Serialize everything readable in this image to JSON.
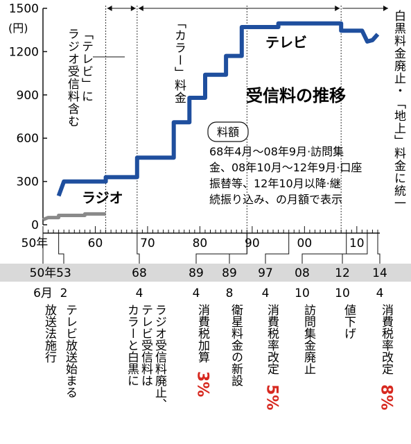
{
  "chart_data": {
    "type": "line",
    "title": "受信料の推移",
    "yunit": "(円)",
    "ylim": [
      0,
      1500
    ],
    "yticks": [
      0,
      300,
      600,
      900,
      1200,
      1500
    ],
    "xlim": [
      1950,
      2014
    ],
    "xticks": [
      {
        "x": 1950,
        "label": "50年"
      },
      {
        "x": 1960,
        "label": "60"
      },
      {
        "x": 1970,
        "label": "70"
      },
      {
        "x": 1980,
        "label": "80"
      },
      {
        "x": 1990,
        "label": "90"
      },
      {
        "x": 2000,
        "label": "00"
      },
      {
        "x": 2010,
        "label": "10"
      }
    ],
    "series": [
      {
        "name": "テレビ",
        "color": "#1f4f9e",
        "points": [
          [
            1953,
            200
          ],
          [
            1954,
            300
          ],
          [
            1962,
            300
          ],
          [
            1962,
            330
          ],
          [
            1968,
            330
          ],
          [
            1968,
            465
          ],
          [
            1975,
            465
          ],
          [
            1975,
            710
          ],
          [
            1978,
            710
          ],
          [
            1978,
            880
          ],
          [
            1981,
            880
          ],
          [
            1981,
            1040
          ],
          [
            1985,
            1040
          ],
          [
            1985,
            1170
          ],
          [
            1988,
            1170
          ],
          [
            1988,
            1370
          ],
          [
            1995,
            1370
          ],
          [
            1995,
            1395
          ],
          [
            2007,
            1395
          ],
          [
            2007,
            1345
          ],
          [
            2011,
            1345
          ],
          [
            2012,
            1270
          ],
          [
            2013,
            1280
          ],
          [
            2014,
            1320
          ]
        ]
      },
      {
        "name": "ラジオ",
        "color": "#8a8a8a",
        "points": [
          [
            1950,
            35
          ],
          [
            1951,
            50
          ],
          [
            1953,
            50
          ],
          [
            1953,
            65
          ],
          [
            1958,
            65
          ],
          [
            1958,
            75
          ],
          [
            1962,
            75
          ]
        ]
      }
    ],
    "periods": [
      {
        "from": 1962,
        "to": 1968,
        "label": "「テレビ」にラジオ受信料含む"
      },
      {
        "from": 1968,
        "to": 1989,
        "label": "「カラー」料金"
      },
      {
        "from": 1989,
        "to": 2014,
        "label": "白黒料金廃止・「地上」料金に統一"
      }
    ],
    "note": {
      "heading": "料額",
      "lines": [
        "68年4月～08年9月·訪問集",
        "金、08年10月～12年9月·口座",
        "振替等、12年10月以降·継",
        "続振り込み、の月額で表示"
      ]
    },
    "events": [
      {
        "x": 1950,
        "year": "50年",
        "month": "6月",
        "text": "放送法施行",
        "extra": ""
      },
      {
        "x": 1953,
        "year": "53",
        "month": "2",
        "text": "テレビ放送始まる",
        "extra": ""
      },
      {
        "x": 1968,
        "year": "68",
        "month": "4",
        "text": "ラジオ受信料廃止、|テレビ受信料は|カラーと白黒に",
        "extra": ""
      },
      {
        "x": 1989,
        "year": "89",
        "month": "4",
        "text": "消費税加算",
        "extra": "3%"
      },
      {
        "x": 1989,
        "year": "89",
        "month": "8",
        "text": "衛星料金の新設",
        "extra": ""
      },
      {
        "x": 1997,
        "year": "97",
        "month": "4",
        "text": "消費税率改定",
        "extra": "5%"
      },
      {
        "x": 2008,
        "year": "08",
        "month": "10",
        "text": "訪問集金廃止",
        "extra": ""
      },
      {
        "x": 2012,
        "year": "12",
        "month": "10",
        "text": "値下げ",
        "extra": ""
      },
      {
        "x": 2014,
        "year": "14",
        "month": "4",
        "text": "消費税率改定",
        "extra": "8%"
      }
    ]
  }
}
